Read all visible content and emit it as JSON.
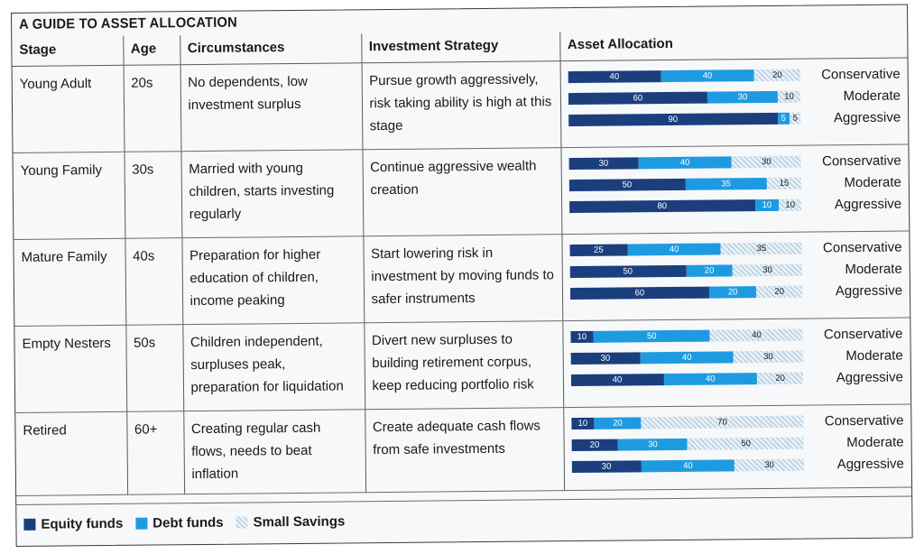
{
  "title": "A GUIDE TO ASSET ALLOCATION",
  "headers": [
    "Stage",
    "Age",
    "Circumstances",
    "Investment Strategy",
    "Asset Allocation"
  ],
  "colors": {
    "equity": "#1b3f7d",
    "debt": "#1e9be0",
    "small_savings": "#c7dbe9"
  },
  "rows": [
    {
      "stage": "Young Adult",
      "age": "20s",
      "circumstances": "No dependents, low investment surplus",
      "strategy": "Pursue growth aggressively, risk taking ability is high at this stage",
      "profiles": [
        {
          "label": "Conservative",
          "equity": 40,
          "debt": 40,
          "small": 20
        },
        {
          "label": "Moderate",
          "equity": 60,
          "debt": 30,
          "small": 10
        },
        {
          "label": "Aggressive",
          "equity": 90,
          "debt": 5,
          "small": 5
        }
      ]
    },
    {
      "stage": "Young Family",
      "age": "30s",
      "circumstances": "Married with young children, starts investing regularly",
      "strategy": "Continue aggressive wealth creation",
      "profiles": [
        {
          "label": "Conservative",
          "equity": 30,
          "debt": 40,
          "small": 30
        },
        {
          "label": "Moderate",
          "equity": 50,
          "debt": 35,
          "small": 15
        },
        {
          "label": "Aggressive",
          "equity": 80,
          "debt": 10,
          "small": 10
        }
      ]
    },
    {
      "stage": "Mature Family",
      "age": "40s",
      "circumstances": "Preparation for higher education of children, income peaking",
      "strategy": "Start lowering risk in investment by moving funds to safer instruments",
      "profiles": [
        {
          "label": "Conservative",
          "equity": 25,
          "debt": 40,
          "small": 35
        },
        {
          "label": "Moderate",
          "equity": 50,
          "debt": 20,
          "small": 30
        },
        {
          "label": "Aggressive",
          "equity": 60,
          "debt": 20,
          "small": 20
        }
      ]
    },
    {
      "stage": "Empty Nesters",
      "age": "50s",
      "circumstances": "Children independent, surpluses peak, preparation for liquidation",
      "strategy": "Divert new surpluses to building retirement corpus, keep reducing portfolio risk",
      "profiles": [
        {
          "label": "Conservative",
          "equity": 10,
          "debt": 50,
          "small": 40
        },
        {
          "label": "Moderate",
          "equity": 30,
          "debt": 40,
          "small": 30
        },
        {
          "label": "Aggressive",
          "equity": 40,
          "debt": 40,
          "small": 20
        }
      ]
    },
    {
      "stage": "Retired",
      "age": "60+",
      "circumstances": "Creating regular cash flows, needs to beat inflation",
      "strategy": "Create adequate cash flows from safe investments",
      "profiles": [
        {
          "label": "Conservative",
          "equity": 10,
          "debt": 20,
          "small": 70
        },
        {
          "label": "Moderate",
          "equity": 20,
          "debt": 30,
          "small": 50
        },
        {
          "label": "Aggressive",
          "equity": 30,
          "debt": 40,
          "small": 30
        }
      ]
    }
  ],
  "legend": [
    "Equity funds",
    "Debt funds",
    "Small Savings"
  ]
}
